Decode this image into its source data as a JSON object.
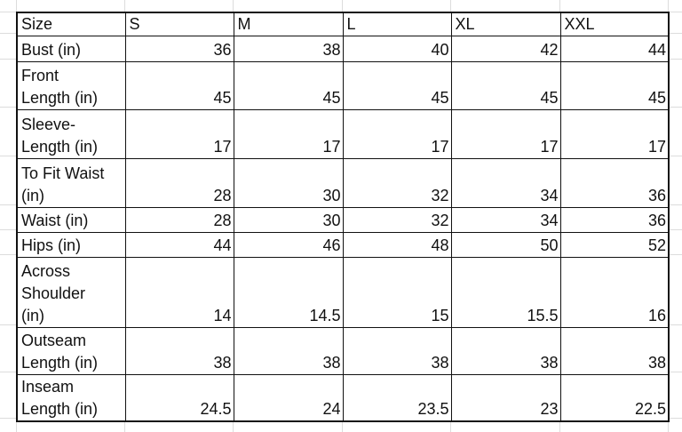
{
  "size_chart": {
    "header": {
      "label": "Size",
      "sizes": [
        "S",
        "M",
        "L",
        "XL",
        "XXL"
      ]
    },
    "rows": [
      {
        "label": "Bust (in)",
        "values": [
          "36",
          "38",
          "40",
          "42",
          "44"
        ]
      },
      {
        "label": "Front\nLength (in)",
        "values": [
          "45",
          "45",
          "45",
          "45",
          "45"
        ]
      },
      {
        "label": "Sleeve-\nLength (in)",
        "values": [
          "17",
          "17",
          "17",
          "17",
          "17"
        ]
      },
      {
        "label": "To Fit Waist\n(in)",
        "values": [
          "28",
          "30",
          "32",
          "34",
          "36"
        ]
      },
      {
        "label": "Waist (in)",
        "values": [
          "28",
          "30",
          "32",
          "34",
          "36"
        ]
      },
      {
        "label": "Hips (in)",
        "values": [
          "44",
          "46",
          "48",
          "50",
          "52"
        ]
      },
      {
        "label": "Across\nShoulder\n(in)",
        "values": [
          "14",
          "14.5",
          "15",
          "15.5",
          "16"
        ]
      },
      {
        "label": "Outseam\nLength (in)",
        "values": [
          "38",
          "38",
          "38",
          "38",
          "38"
        ]
      },
      {
        "label": "Inseam\nLength (in)",
        "values": [
          "24.5",
          "24",
          "23.5",
          "23",
          "22.5"
        ]
      }
    ]
  }
}
